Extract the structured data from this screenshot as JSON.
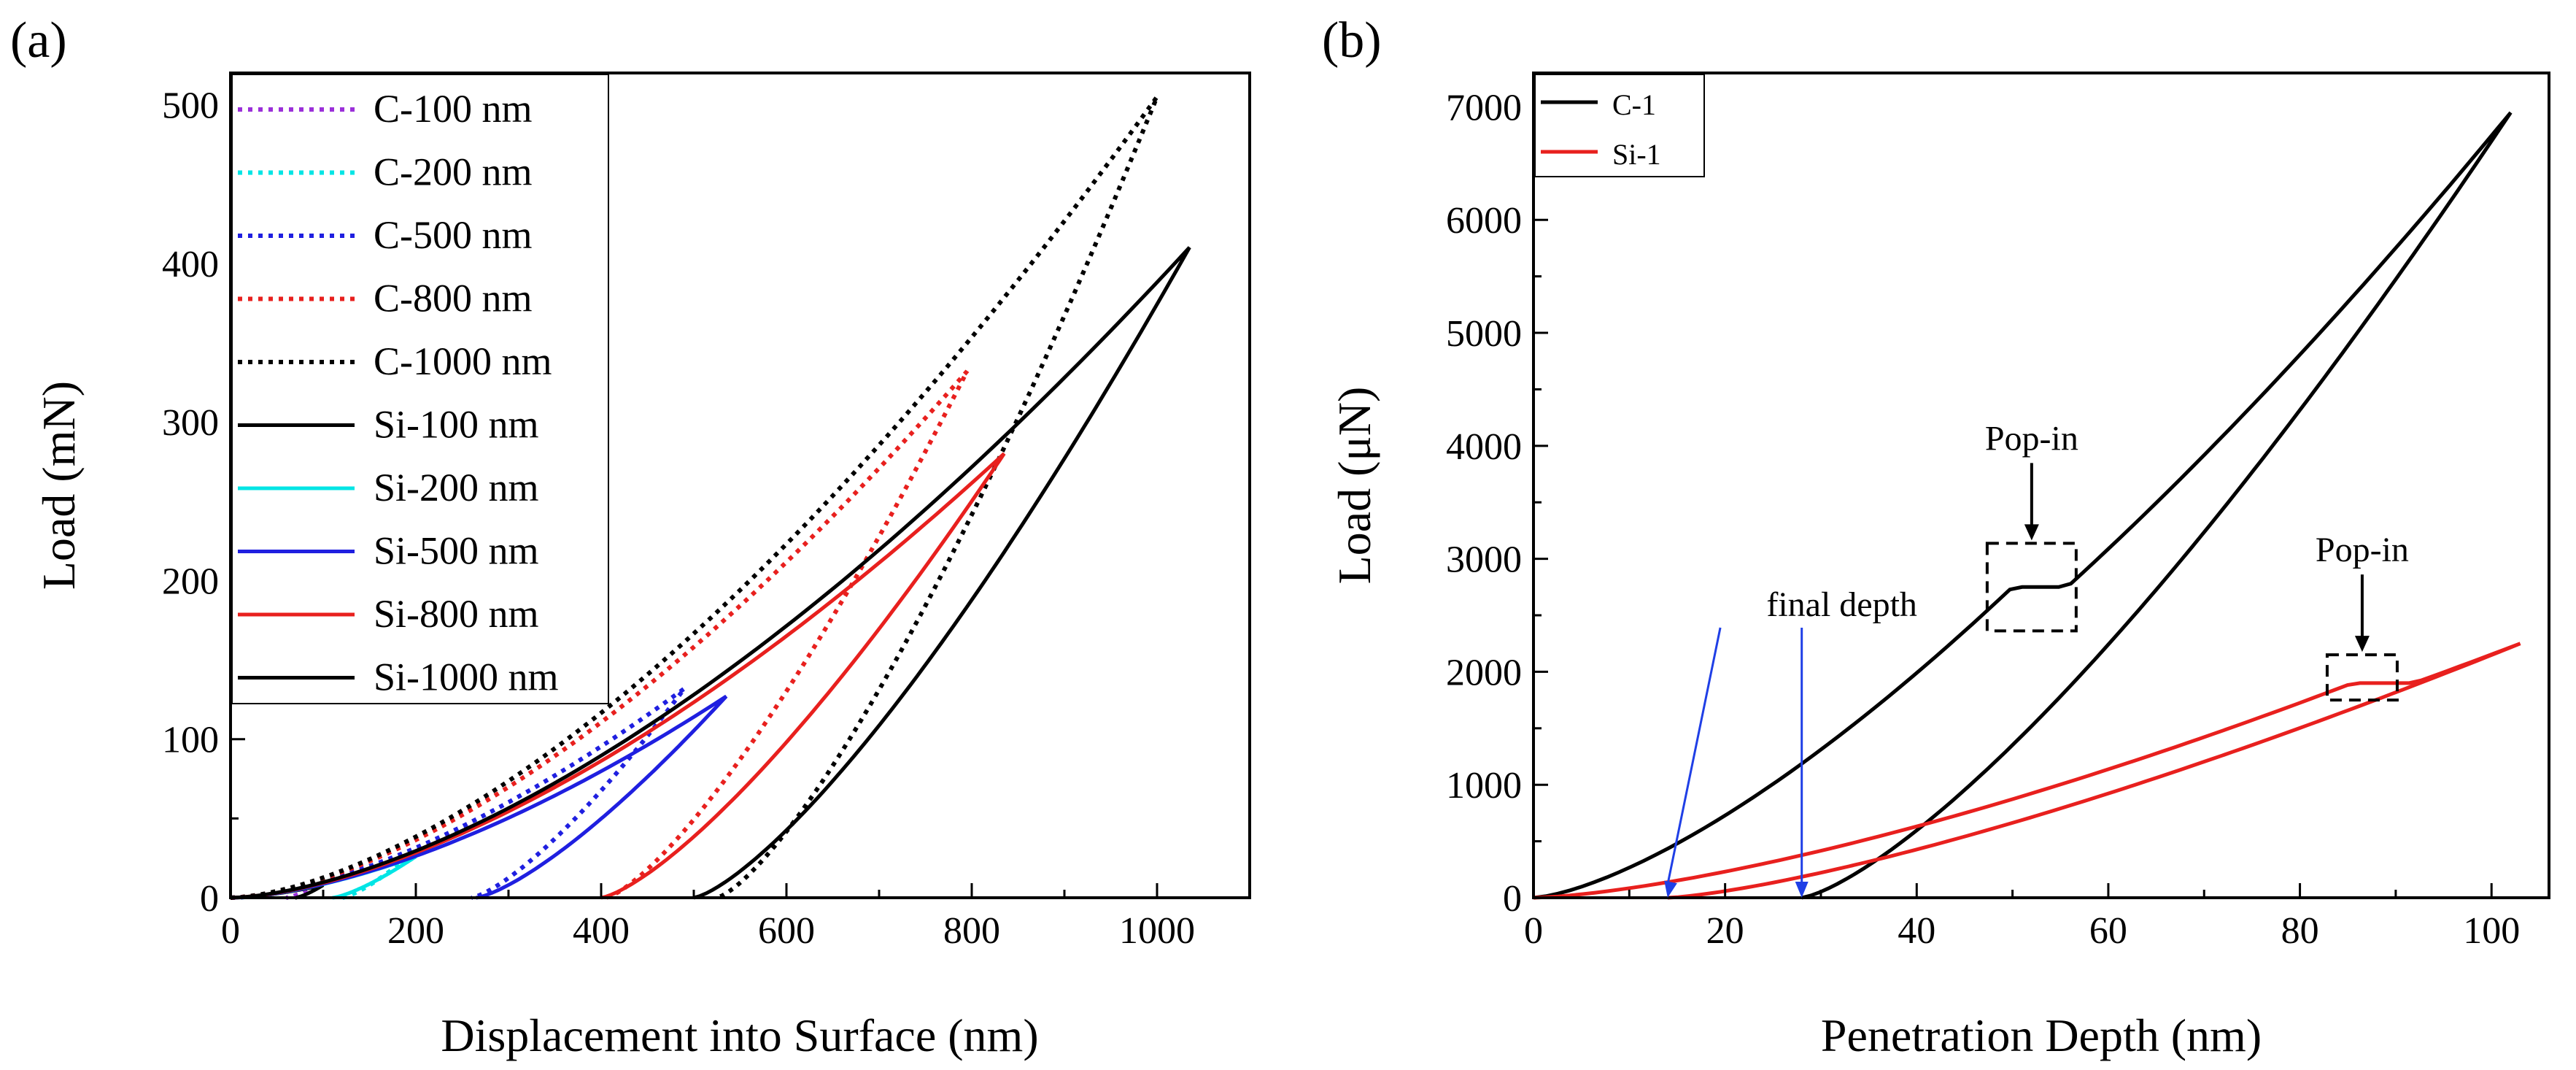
{
  "chart_data": [
    {
      "panel_label": "(a)",
      "type": "line",
      "xlabel": "Displacement into Surface (nm)",
      "ylabel": "Load (mN)",
      "xlim": [
        0,
        1100
      ],
      "ylim": [
        0,
        520
      ],
      "xticks": [
        0,
        200,
        400,
        600,
        800,
        1000
      ],
      "yticks": [
        0,
        100,
        200,
        300,
        400,
        500
      ],
      "legend_position": "top-left",
      "series": [
        {
          "name": "C-100 nm",
          "style": "dotted",
          "color": "#9b30d9",
          "max_depth": 100,
          "max_load": 10,
          "final_depth": 60
        },
        {
          "name": "C-200 nm",
          "style": "dotted",
          "color": "#00e5e5",
          "max_depth": 200,
          "max_load": 30,
          "final_depth": 120
        },
        {
          "name": "C-500 nm",
          "style": "dotted",
          "color": "#1f1fe0",
          "max_depth": 490,
          "max_load": 132,
          "final_depth": 260
        },
        {
          "name": "C-800 nm",
          "style": "dotted",
          "color": "#e8201e",
          "max_depth": 795,
          "max_load": 332,
          "final_depth": 405
        },
        {
          "name": "C-1000 nm",
          "style": "dotted",
          "color": "#000000",
          "max_depth": 1000,
          "max_load": 505,
          "final_depth": 525
        },
        {
          "name": "Si-100 nm",
          "style": "solid",
          "color": "#000000",
          "max_depth": 100,
          "max_load": 8,
          "final_depth": 70
        },
        {
          "name": "Si-200 nm",
          "style": "solid",
          "color": "#00e5e5",
          "max_depth": 200,
          "max_load": 26,
          "final_depth": 110
        },
        {
          "name": "Si-500 nm",
          "style": "solid",
          "color": "#1f1fe0",
          "max_depth": 535,
          "max_load": 127,
          "final_depth": 265
        },
        {
          "name": "Si-800 nm",
          "style": "solid",
          "color": "#e8201e",
          "max_depth": 835,
          "max_load": 280,
          "final_depth": 400
        },
        {
          "name": "Si-1000 nm",
          "style": "solid",
          "color": "#000000",
          "max_depth": 1035,
          "max_load": 410,
          "final_depth": 500
        }
      ]
    },
    {
      "panel_label": "(b)",
      "type": "line",
      "xlabel": "Penetration Depth (nm)",
      "ylabel": "Load (μN)",
      "xlim": [
        0,
        106
      ],
      "ylim": [
        0,
        7300
      ],
      "xticks": [
        0,
        20,
        40,
        60,
        80,
        100
      ],
      "yticks": [
        0,
        1000,
        2000,
        3000,
        4000,
        5000,
        6000,
        7000
      ],
      "legend_position": "top-left",
      "series": [
        {
          "name": "C-1",
          "style": "solid",
          "color": "#000000",
          "max_depth": 102,
          "max_load": 6950,
          "final_depth": 28,
          "popin_depth": [
            50,
            54
          ],
          "popin_load": 2750
        },
        {
          "name": "Si-1",
          "style": "solid",
          "color": "#e8201e",
          "max_depth": 103,
          "max_load": 2250,
          "final_depth": 14,
          "popin_depth": [
            85.5,
            87.5
          ],
          "popin_load": 1900
        }
      ],
      "annotations": [
        {
          "text": "Pop-in",
          "target": "C-1 pop-in",
          "x": 52,
          "y": 2750
        },
        {
          "text": "Pop-in",
          "target": "Si-1 pop-in",
          "x": 86.5,
          "y": 1950
        },
        {
          "text": "final depth",
          "target": "final depths",
          "x": [
            14,
            28
          ],
          "y": 0
        }
      ]
    }
  ]
}
